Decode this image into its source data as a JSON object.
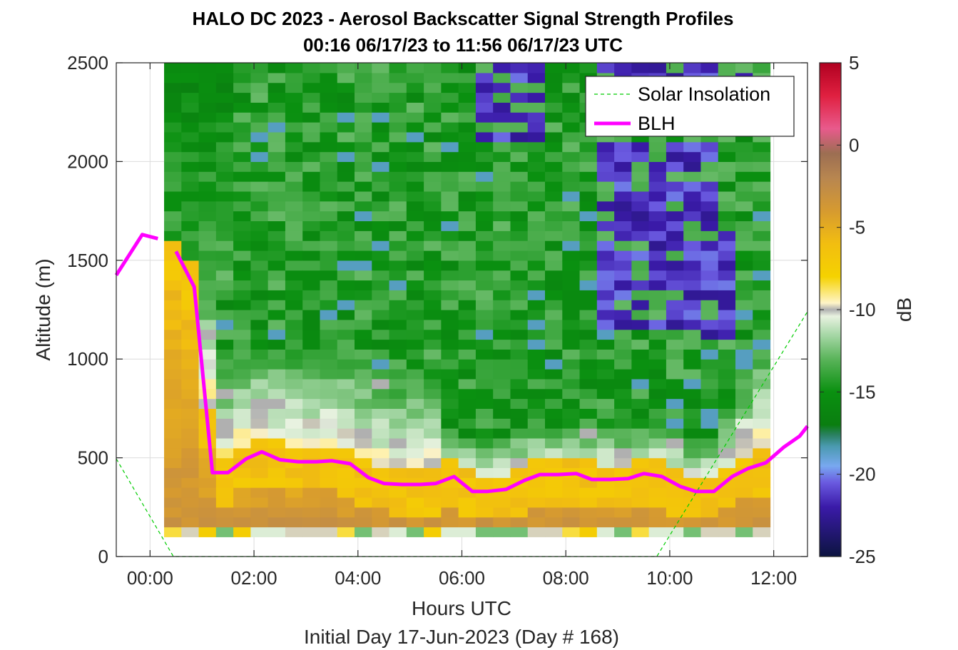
{
  "chart_data": {
    "type": "heatmap",
    "title_line1": "HALO DC 2023 - Aerosol Backscatter Signal Strength Profiles",
    "title_line2": "00:16 06/17/23 to 11:56 06/17/23  UTC",
    "xlabel": "Hours UTC",
    "xlabel2": "Initial Day 17-Jun-2023 (Day # 168)",
    "ylabel": "Altitude (m)",
    "colorbar_label": "dB",
    "xlim_hours": [
      -0.65,
      12.65
    ],
    "ylim": [
      0,
      2500
    ],
    "grid": true,
    "x_ticks": [
      {
        "value": 0,
        "label": "00:00"
      },
      {
        "value": 2,
        "label": "02:00"
      },
      {
        "value": 4,
        "label": "04:00"
      },
      {
        "value": 6,
        "label": "06:00"
      },
      {
        "value": 8,
        "label": "08:00"
      },
      {
        "value": 10,
        "label": "10:00"
      },
      {
        "value": 12,
        "label": "12:00"
      }
    ],
    "y_ticks": [
      {
        "value": 0,
        "label": "0"
      },
      {
        "value": 500,
        "label": "500"
      },
      {
        "value": 1000,
        "label": "1000"
      },
      {
        "value": 1500,
        "label": "1500"
      },
      {
        "value": 2000,
        "label": "2000"
      },
      {
        "value": 2500,
        "label": "2500"
      }
    ],
    "clim": [
      -25,
      5
    ],
    "colorbar_ticks": [
      {
        "value": 5,
        "label": "5"
      },
      {
        "value": 0,
        "label": "0"
      },
      {
        "value": -5,
        "label": "-5"
      },
      {
        "value": -10,
        "label": "-10"
      },
      {
        "value": -15,
        "label": "-15"
      },
      {
        "value": -20,
        "label": "-20"
      },
      {
        "value": -25,
        "label": "-25"
      }
    ],
    "colorscale": [
      {
        "value": -25,
        "color": "#0c1440"
      },
      {
        "value": -22,
        "color": "#3a1aa8"
      },
      {
        "value": -20.5,
        "color": "#6a5ae0"
      },
      {
        "value": -19.5,
        "color": "#78a8f0"
      },
      {
        "value": -18.3,
        "color": "#4a9ab0"
      },
      {
        "value": -17.6,
        "color": "#2a8060"
      },
      {
        "value": -17,
        "color": "#0a7e10"
      },
      {
        "value": -15,
        "color": "#0a9010"
      },
      {
        "value": -13,
        "color": "#5ab45a"
      },
      {
        "value": -11.5,
        "color": "#a8d8a8"
      },
      {
        "value": -10.4,
        "color": "#e8f2e0"
      },
      {
        "value": -10,
        "color": "#b0b0b0"
      },
      {
        "value": -9.6,
        "color": "#fff5c8"
      },
      {
        "value": -8,
        "color": "#f5d200"
      },
      {
        "value": -6,
        "color": "#f2be10"
      },
      {
        "value": -4,
        "color": "#d69a30"
      },
      {
        "value": -2,
        "color": "#b88650"
      },
      {
        "value": -0.5,
        "color": "#9c6e52"
      },
      {
        "value": 1,
        "color": "#e85a8c"
      },
      {
        "value": 3,
        "color": "#e02040"
      },
      {
        "value": 5,
        "color": "#b00020"
      }
    ],
    "heatmap": {
      "x_start_hours": 0.27,
      "x_end_hours": 11.93,
      "y_bottom": 100,
      "y_top": 2500,
      "cell_height": 50,
      "col_width_hours": 0.333,
      "col_count": 35,
      "row_count": 48,
      "note_surface_row": "bottom 100-150 m row shows mixed light values"
    },
    "series": [
      {
        "name": "Solar Insolation",
        "type": "line",
        "style": "dashed",
        "color": "#00cc00",
        "x": [
          -0.65,
          0.45,
          9.75,
          12.65
        ],
        "y": [
          495,
          0,
          0,
          1240
        ]
      },
      {
        "name": "BLH",
        "type": "line",
        "style": "solid",
        "color": "#ff00ff",
        "segments": [
          {
            "x": [
              -0.65,
              -0.15,
              0.15
            ],
            "y": [
              1425,
              1630,
              1610
            ]
          },
          {
            "x": [
              0.5,
              0.85,
              1.2,
              1.5,
              1.85,
              2.15,
              2.5,
              2.85,
              3.2,
              3.5,
              3.85,
              4.2,
              4.5,
              4.85,
              5.2,
              5.5,
              5.85,
              6.2,
              6.5,
              6.85,
              7.2,
              7.5,
              7.85,
              8.2,
              8.5,
              8.85,
              9.2,
              9.5,
              9.85,
              10.2,
              10.5,
              10.85,
              11.2,
              11.5,
              11.85,
              12.2,
              12.5,
              12.65
            ],
            "y": [
              1545,
              1365,
              425,
              425,
              495,
              530,
              490,
              480,
              480,
              485,
              470,
              400,
              370,
              365,
              365,
              370,
              405,
              330,
              330,
              340,
              385,
              415,
              415,
              420,
              390,
              390,
              395,
              420,
              405,
              355,
              330,
              330,
              405,
              445,
              475,
              555,
              610,
              660
            ]
          }
        ]
      }
    ],
    "legend": {
      "placement": "top-right",
      "entries": [
        "Solar Insolation",
        "BLH"
      ]
    }
  }
}
